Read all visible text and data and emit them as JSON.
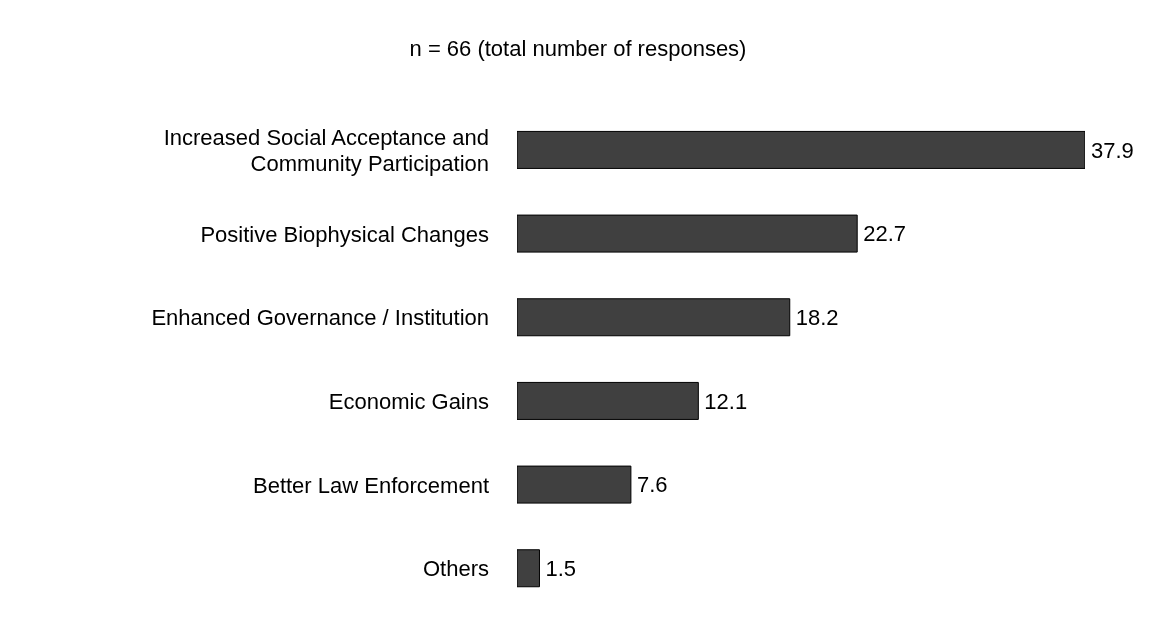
{
  "chart_data": {
    "type": "bar",
    "orientation": "horizontal",
    "title": "n = 66 (total number of responses)",
    "categories": [
      "Increased Social Acceptance and Community Participation",
      "Positive Biophysical Changes",
      "Enhanced Governance / Institution",
      "Economic Gains",
      "Better Law Enforcement",
      "Others"
    ],
    "values": [
      37.9,
      22.7,
      18.2,
      12.1,
      7.6,
      1.5
    ],
    "color": "#404040",
    "data_labels": true
  }
}
